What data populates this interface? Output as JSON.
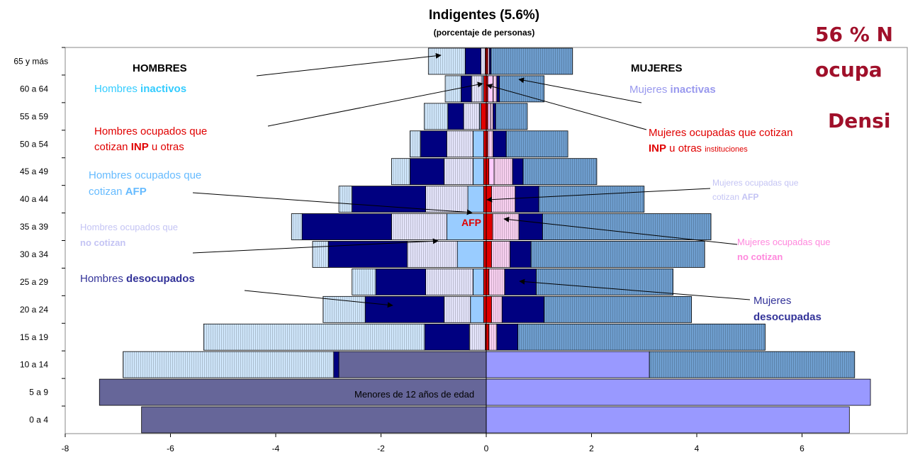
{
  "chart_data": {
    "type": "bar",
    "orientation": "horizontal",
    "stacked": true,
    "title": "Indigentes (5.6%)",
    "subtitle": "(porcentaje de personas)",
    "categories": [
      "65 y más",
      "60 a 64",
      "55 a 59",
      "50 a 54",
      "45 a 49",
      "40 a 44",
      "35 a 39",
      "30 a 34",
      "25 a 29",
      "20 a 24",
      "15 a 19",
      "10 a 14",
      "5 a 9",
      "0 a 4"
    ],
    "xlim": [
      -8,
      8
    ],
    "xticks": [
      -8,
      -6,
      -4,
      -2,
      0,
      2,
      4,
      6
    ],
    "series": [
      {
        "color": "#666699",
        "values": [
          0,
          0,
          0,
          0,
          0,
          0,
          0,
          0,
          0,
          0,
          0,
          -2.8,
          -7.35,
          -6.55
        ]
      },
      {
        "color": "#e00000",
        "values": [
          -0.02,
          -0.05,
          -0.1,
          -0.05,
          -0.05,
          -0.05,
          -0.05,
          -0.05,
          -0.05,
          -0.05,
          -0.02,
          0,
          0,
          0
        ]
      },
      {
        "color": "#99ccff",
        "values": [
          0,
          -0.03,
          -0.03,
          -0.2,
          -0.2,
          -0.3,
          -0.7,
          -0.5,
          -0.2,
          -0.25,
          0,
          0,
          0,
          0
        ]
      },
      {
        "color": "#e4e4fb",
        "pattern": "vertical-stripes",
        "values": [
          -0.08,
          -0.2,
          -0.3,
          -0.5,
          -0.55,
          -0.8,
          -1.05,
          -0.95,
          -0.9,
          -0.5,
          -0.3,
          0,
          0,
          0
        ]
      },
      {
        "color": "#000080",
        "values": [
          -0.3,
          -0.2,
          -0.3,
          -0.5,
          -0.65,
          -1.4,
          -1.7,
          -1.5,
          -0.95,
          -1.5,
          -0.85,
          -0.1,
          0,
          0
        ]
      },
      {
        "color": "#cfe6fb",
        "pattern": "vertical-stripes",
        "values": [
          -0.7,
          -0.3,
          -0.45,
          -0.2,
          -0.35,
          -0.25,
          -0.2,
          -0.3,
          -0.45,
          -0.8,
          -4.2,
          -4.0,
          0,
          0
        ]
      },
      {
        "color": "#9999ff",
        "values": [
          0,
          0,
          0,
          0,
          0,
          0,
          0,
          0,
          0,
          0,
          0,
          3.1,
          7.3,
          6.9
        ]
      },
      {
        "color": "#e00000",
        "values": [
          0.03,
          0.03,
          0.03,
          0.03,
          0.05,
          0.1,
          0.12,
          0.1,
          0.05,
          0.1,
          0.05,
          0,
          0,
          0
        ]
      },
      {
        "color": "#ffccff",
        "values": [
          0,
          0.1,
          0.05,
          0,
          0.1,
          0,
          0,
          0,
          0,
          0,
          0,
          0,
          0,
          0
        ]
      },
      {
        "color": "#f8d0f0",
        "pattern": "vertical-stripes",
        "values": [
          0.03,
          0.07,
          0.05,
          0.1,
          0.35,
          0.45,
          0.5,
          0.35,
          0.3,
          0.2,
          0.15,
          0,
          0,
          0
        ]
      },
      {
        "color": "#000080",
        "values": [
          0.03,
          0.05,
          0.05,
          0.25,
          0.2,
          0.45,
          0.45,
          0.4,
          0.6,
          0.8,
          0.4,
          0,
          0,
          0
        ]
      },
      {
        "color": "#6f9fd0",
        "pattern": "vertical-stripes",
        "values": [
          1.55,
          0.85,
          0.6,
          1.17,
          1.4,
          2.0,
          3.2,
          3.3,
          2.6,
          2.8,
          4.7,
          3.9,
          0,
          0
        ]
      }
    ],
    "annotations": [
      [
        "HOMBRES"
      ],
      [
        "MUJERES"
      ],
      [
        "Hombres ",
        "inactivos"
      ],
      [
        "Hombres ocupados que"
      ],
      [
        "cotizan ",
        "INP",
        " u otras"
      ],
      [
        "Hombres ocupados que"
      ],
      [
        "cotizan ",
        "AFP"
      ],
      [
        "Hombres ocupados que"
      ],
      [
        "no cotizan"
      ],
      [
        "Hombres ",
        "desocupados"
      ],
      [
        "Mujeres ",
        "inactivas"
      ],
      [
        "Mujeres ocupadas que cotizan"
      ],
      [
        "INP",
        " u otras ",
        "instituciones"
      ],
      [
        "Mujeres ocupadas que"
      ],
      [
        "cotizan ",
        "AFP"
      ],
      [
        "Mujeres ocupadas que"
      ],
      [
        "no cotizan"
      ],
      [
        "Mujeres"
      ],
      [
        "desocupadas"
      ],
      [
        "AFP"
      ],
      [
        "Menores de 12 años de edad"
      ],
      [
        "56 % N"
      ],
      [
        "ocupa"
      ],
      [
        "Densi"
      ]
    ]
  }
}
